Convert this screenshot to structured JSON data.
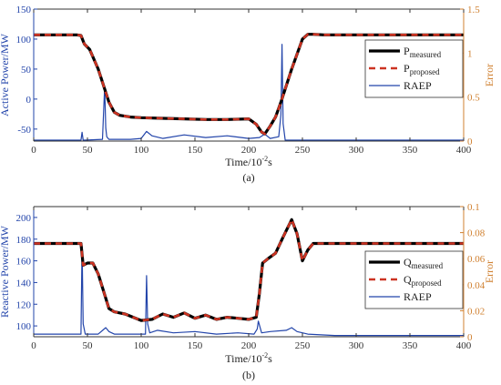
{
  "chart_data": [
    {
      "type": "line",
      "panel_label": "(a)",
      "xlabel": {
        "base": "Time/10",
        "exp": "-2",
        "suffix": "s"
      },
      "ylabel_left": "Active Power/MW",
      "ylabel_right": "Error",
      "xlim": [
        0,
        400
      ],
      "ylim_left": [
        -70,
        150
      ],
      "ylim_right": [
        0,
        1.5
      ],
      "xticks": [
        0,
        50,
        100,
        150,
        200,
        250,
        300,
        350,
        400
      ],
      "yticks_left": [
        150,
        100,
        50,
        0,
        -50
      ],
      "yticks_right": [
        1.5,
        1,
        0.5,
        0
      ],
      "grid": false,
      "legend_position": "right",
      "legend": [
        {
          "base": "P",
          "sub": "measured"
        },
        {
          "base": "P",
          "sub": "proposed"
        },
        {
          "base": "RAEP",
          "sub": ""
        }
      ],
      "colors": {
        "measured": "#000000",
        "proposed": "#cc3322",
        "raep": "#2244aa",
        "left_axis": "#2244aa",
        "right_axis": "#d08030"
      },
      "series": [
        {
          "key": "measured",
          "axis": "left",
          "style": "solid",
          "x": [
            0,
            40,
            44,
            47,
            52,
            60,
            70,
            75,
            80,
            90,
            100,
            120,
            140,
            160,
            180,
            200,
            207,
            212,
            215,
            220,
            225,
            230,
            240,
            250,
            255,
            260,
            270,
            300,
            400
          ],
          "y": [
            107,
            107,
            106,
            92,
            83,
            50,
            -5,
            -22,
            -27,
            -30,
            -31,
            -32,
            -33,
            -34,
            -34,
            -33,
            -42,
            -55,
            -58,
            -45,
            -30,
            -5,
            50,
            100,
            108,
            108,
            107,
            107,
            107
          ]
        },
        {
          "key": "proposed",
          "axis": "left",
          "style": "dashed",
          "x": [
            0,
            40,
            44,
            47,
            52,
            60,
            70,
            75,
            80,
            90,
            100,
            120,
            140,
            160,
            180,
            200,
            207,
            212,
            215,
            220,
            225,
            230,
            240,
            250,
            255,
            260,
            270,
            300,
            400
          ],
          "y": [
            107,
            107,
            106,
            92,
            83,
            50,
            -5,
            -22,
            -27,
            -30,
            -31,
            -32,
            -33,
            -34,
            -34,
            -33,
            -42,
            -55,
            -58,
            -45,
            -30,
            -5,
            50,
            100,
            108,
            108,
            107,
            107,
            107
          ]
        },
        {
          "key": "raep",
          "axis": "right",
          "style": "solid",
          "x": [
            0,
            44,
            45,
            46,
            47,
            64,
            66,
            67,
            68,
            70,
            90,
            100,
            105,
            110,
            120,
            140,
            160,
            180,
            200,
            210,
            215,
            220,
            228,
            230,
            231,
            232,
            234,
            400
          ],
          "y": [
            0.01,
            0.01,
            0.1,
            0.01,
            0.01,
            0.02,
            0.62,
            0.15,
            0.05,
            0.02,
            0.02,
            0.03,
            0.11,
            0.06,
            0.03,
            0.07,
            0.04,
            0.06,
            0.03,
            0.04,
            0.08,
            0.03,
            0.05,
            0.3,
            1.1,
            0.2,
            0.01,
            0.01
          ]
        }
      ]
    },
    {
      "type": "line",
      "panel_label": "(b)",
      "xlabel": {
        "base": "Time/10",
        "exp": "-2",
        "suffix": "s"
      },
      "ylabel_left": "Reactive Power/MW",
      "ylabel_right": "Error",
      "xlim": [
        0,
        400
      ],
      "ylim_left": [
        90,
        210
      ],
      "ylim_right": [
        0,
        0.1
      ],
      "xticks": [
        0,
        50,
        100,
        150,
        200,
        250,
        300,
        350,
        400
      ],
      "yticks_left": [
        200,
        180,
        160,
        140,
        120,
        100
      ],
      "yticks_right": [
        0.1,
        0.08,
        0.06,
        0.04,
        0.02,
        0
      ],
      "grid": false,
      "legend_position": "right",
      "legend": [
        {
          "base": "Q",
          "sub": "measured"
        },
        {
          "base": "Q",
          "sub": "proposed"
        },
        {
          "base": "RAEP",
          "sub": ""
        }
      ],
      "colors": {
        "measured": "#000000",
        "proposed": "#cc3322",
        "raep": "#2244aa",
        "left_axis": "#2244aa",
        "right_axis": "#d08030"
      },
      "series": [
        {
          "key": "measured",
          "axis": "left",
          "style": "solid",
          "x": [
            0,
            44,
            46,
            50,
            55,
            60,
            65,
            70,
            75,
            80,
            85,
            90,
            100,
            110,
            120,
            130,
            140,
            150,
            160,
            170,
            180,
            190,
            200,
            207,
            210,
            213,
            218,
            225,
            232,
            240,
            245,
            250,
            255,
            260,
            270,
            300,
            400
          ],
          "y": [
            176,
            176,
            156,
            158,
            158,
            148,
            132,
            116,
            113,
            112,
            111,
            109,
            105,
            106,
            111,
            108,
            112,
            107,
            110,
            106,
            108,
            107,
            106,
            108,
            130,
            158,
            162,
            167,
            182,
            198,
            185,
            160,
            170,
            176,
            176,
            176,
            176
          ]
        },
        {
          "key": "proposed",
          "axis": "left",
          "style": "dashed",
          "x": [
            0,
            44,
            46,
            50,
            55,
            60,
            65,
            70,
            75,
            80,
            85,
            90,
            100,
            110,
            120,
            130,
            140,
            150,
            160,
            170,
            180,
            190,
            200,
            207,
            210,
            213,
            218,
            225,
            232,
            240,
            245,
            250,
            255,
            260,
            270,
            300,
            400
          ],
          "y": [
            176,
            176,
            156,
            158,
            158,
            148,
            132,
            116,
            113,
            112,
            111,
            109,
            105,
            106,
            111,
            108,
            112,
            107,
            110,
            106,
            108,
            107,
            106,
            108,
            130,
            158,
            162,
            167,
            182,
            198,
            185,
            160,
            170,
            176,
            176,
            176,
            176
          ]
        },
        {
          "key": "raep",
          "axis": "right",
          "style": "solid",
          "x": [
            0,
            44,
            45,
            46,
            48,
            60,
            67,
            70,
            75,
            90,
            100,
            104,
            105,
            106,
            108,
            115,
            130,
            150,
            170,
            190,
            205,
            208,
            209,
            212,
            220,
            235,
            240,
            245,
            255,
            280,
            400
          ],
          "y": [
            0.002,
            0.002,
            0.07,
            0.01,
            0.002,
            0.002,
            0.007,
            0.004,
            0.002,
            0.002,
            0.002,
            0.002,
            0.047,
            0.01,
            0.003,
            0.005,
            0.003,
            0.004,
            0.002,
            0.003,
            0.002,
            0.006,
            0.012,
            0.003,
            0.004,
            0.005,
            0.007,
            0.004,
            0.002,
            0.001,
            0.001
          ]
        }
      ]
    }
  ]
}
